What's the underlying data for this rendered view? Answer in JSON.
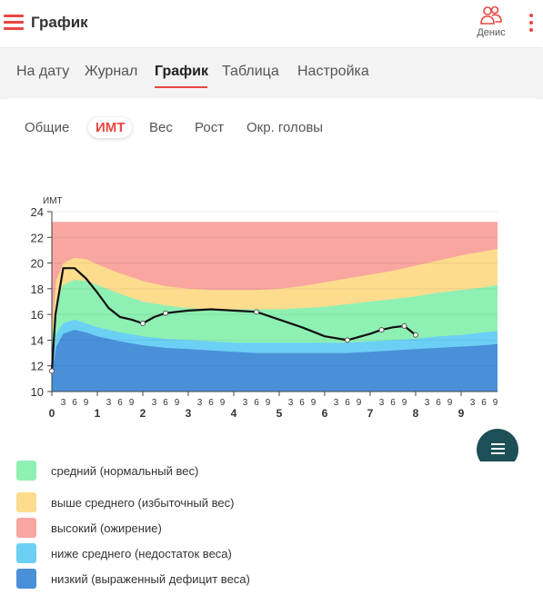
{
  "header": {
    "title": "График",
    "user_name": "Денис"
  },
  "main_tabs": [
    {
      "label": "На дату"
    },
    {
      "label": "Журнал"
    },
    {
      "label": "График"
    },
    {
      "label": "Таблица"
    },
    {
      "label": "Настройка"
    }
  ],
  "active_main_tab": "График",
  "sub_tabs": [
    {
      "label": "Общие"
    },
    {
      "label": "ИМТ"
    },
    {
      "label": "Вес"
    },
    {
      "label": "Рост"
    },
    {
      "label": "Окр. головы"
    }
  ],
  "active_sub_tab": "ИМТ",
  "colors": {
    "accent": "#e8473f",
    "normal": "#8ff0b4",
    "above": "#fddc8e",
    "high": "#f9a6a0",
    "below": "#6cd0f5",
    "low": "#4a90d9",
    "fab": "#1d4f56"
  },
  "legend": [
    {
      "label": "средний (нормальный вес)",
      "color": "#8ff0b4"
    },
    {
      "label": "выше среднего (избыточный вес)",
      "color": "#fddc8e"
    },
    {
      "label": "высокий (ожирение)",
      "color": "#f9a6a0"
    },
    {
      "label": "ниже среднего (недостаток веса)",
      "color": "#6cd0f5"
    },
    {
      "label": "низкий (выраженный дефицит веса)",
      "color": "#4a90d9"
    }
  ],
  "chart_data": {
    "type": "area",
    "ylabel": "ИМТ",
    "ylim": [
      10,
      24
    ],
    "yticks": [
      10,
      12,
      14,
      16,
      18,
      20,
      22,
      24
    ],
    "xlim": [
      0,
      9.8
    ],
    "x_major_ticks": [
      0,
      1,
      2,
      3,
      4,
      5,
      6,
      7,
      8,
      9
    ],
    "x_minor_labels": [
      "3",
      "6",
      "9"
    ],
    "band_x": [
      0,
      0.1,
      0.25,
      0.5,
      0.75,
      1,
      1.5,
      2,
      2.5,
      3,
      3.5,
      4,
      4.5,
      5,
      5.5,
      6,
      6.5,
      7,
      7.5,
      8,
      8.5,
      9,
      9.5,
      9.8
    ],
    "bands": [
      {
        "name": "низкий",
        "top": [
          11.5,
          13.5,
          14.5,
          14.8,
          14.6,
          14.3,
          13.9,
          13.6,
          13.4,
          13.3,
          13.2,
          13.1,
          13.0,
          13.0,
          13.0,
          13.0,
          13.0,
          13.1,
          13.2,
          13.3,
          13.4,
          13.5,
          13.6,
          13.7
        ]
      },
      {
        "name": "ниже среднего",
        "top": [
          12.3,
          14.5,
          15.3,
          15.6,
          15.3,
          15.0,
          14.6,
          14.3,
          14.1,
          14.0,
          13.9,
          13.8,
          13.8,
          13.8,
          13.8,
          13.8,
          13.8,
          13.9,
          14.0,
          14.1,
          14.3,
          14.4,
          14.6,
          14.7
        ]
      },
      {
        "name": "средний",
        "top": [
          14.0,
          17.0,
          18.3,
          18.7,
          18.6,
          18.3,
          17.6,
          17.0,
          16.7,
          16.5,
          16.4,
          16.4,
          16.4,
          16.4,
          16.5,
          16.6,
          16.8,
          17.0,
          17.2,
          17.4,
          17.7,
          17.9,
          18.1,
          18.3
        ]
      },
      {
        "name": "выше среднего",
        "top": [
          15.0,
          18.7,
          20.0,
          20.4,
          20.3,
          19.9,
          19.2,
          18.6,
          18.2,
          18.0,
          17.9,
          17.9,
          17.9,
          18.0,
          18.2,
          18.5,
          18.8,
          19.1,
          19.4,
          19.8,
          20.2,
          20.6,
          20.9,
          21.1
        ]
      },
      {
        "name": "высокий",
        "top": [
          23.2,
          23.2,
          23.2,
          23.2,
          23.2,
          23.2,
          23.2,
          23.2,
          23.2,
          23.2,
          23.2,
          23.2,
          23.2,
          23.2,
          23.2,
          23.2,
          23.2,
          23.2,
          23.2,
          23.2,
          23.2,
          23.2,
          23.2,
          23.2
        ]
      }
    ],
    "series": [
      {
        "x": [
          0,
          0.08,
          0.25,
          0.5,
          0.75,
          1,
          1.25,
          1.5,
          1.75,
          2,
          2.25,
          2.5,
          3,
          3.5,
          4,
          4.5,
          5,
          5.5,
          6,
          6.5,
          7,
          7.25,
          7.5,
          7.75,
          8
        ],
        "y": [
          11.6,
          16.0,
          19.6,
          19.6,
          18.8,
          17.7,
          16.5,
          15.8,
          15.6,
          15.3,
          15.8,
          16.1,
          16.3,
          16.4,
          16.3,
          16.2,
          15.6,
          15.0,
          14.3,
          14.0,
          14.5,
          14.8,
          15.0,
          15.1,
          14.4
        ]
      }
    ],
    "markers_x": [
      0,
      2,
      2.5,
      4.5,
      6.5,
      7.25,
      7.75,
      8
    ]
  }
}
